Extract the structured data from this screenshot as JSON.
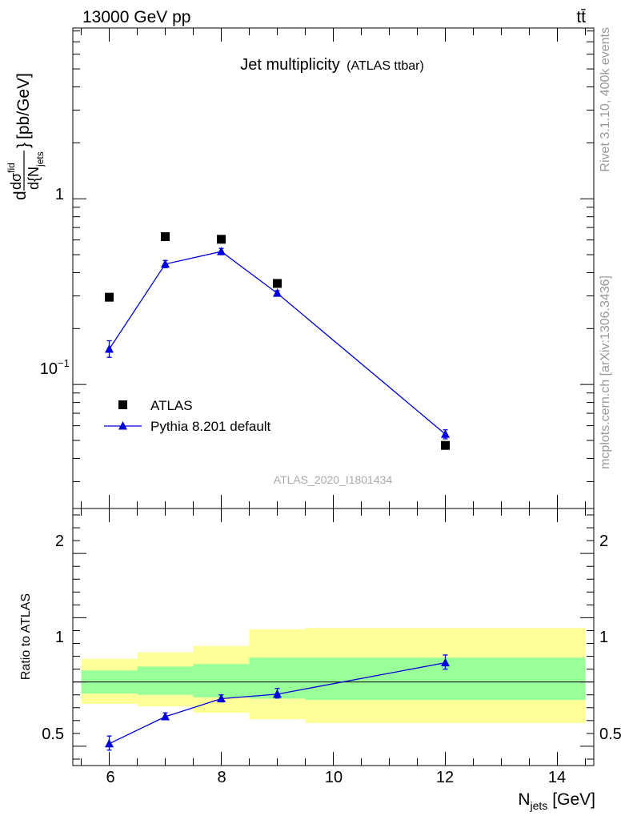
{
  "header": {
    "energy_label": "13000 GeV pp",
    "process_label": "tt̄"
  },
  "side_labels": {
    "rivet": "Rivet 3.1.10,  400k events",
    "mcplots": "mcplots.cern.ch [arXiv:1306.3436]"
  },
  "chart_data": [
    {
      "type": "scatter",
      "title": "Jet multiplicity",
      "subtitle": "(ATLAS ttbar)",
      "watermark": "ATLAS_2020_I1801434",
      "ylabel": {
        "numerator": "dσ",
        "numerator_sup": "fid",
        "denominator": "d{N",
        "denominator_sub": "jets",
        "denominator_close": "}",
        "unit": "[pb/GeV]"
      },
      "yscale": "log",
      "xlim": [
        5.35,
        14.65
      ],
      "ylim": [
        0.0215,
        8.3
      ],
      "ytick_labels": [
        {
          "value": 1,
          "label": "1"
        },
        {
          "value": 0.1,
          "label": "10",
          "sup": "−1"
        }
      ],
      "grid": false,
      "legend_position": "bottom-left",
      "series": [
        {
          "name": "ATLAS",
          "marker": "square",
          "color": "#000000",
          "x": [
            6,
            7,
            8,
            9,
            12
          ],
          "y": [
            0.295,
            0.625,
            0.605,
            0.35,
            0.047
          ]
        },
        {
          "name": "Pythia 8.201 default",
          "marker": "triangle",
          "line": true,
          "color": "#0000dd",
          "x": [
            6,
            7,
            8,
            9,
            12
          ],
          "y": [
            0.155,
            0.445,
            0.52,
            0.31,
            0.054
          ],
          "err_low": [
            0.14,
            0.425,
            0.5,
            0.3,
            0.051
          ],
          "err_high": [
            0.172,
            0.465,
            0.54,
            0.32,
            0.057
          ]
        }
      ]
    },
    {
      "type": "line",
      "ylabel": "Ratio to ATLAS",
      "xlabel": "N",
      "xlabel_sub": "jets",
      "xlabel_unit": "[GeV]",
      "xlim": [
        5.35,
        14.65
      ],
      "ylim": [
        0.35,
        2.35
      ],
      "xtick_labels": [
        "6",
        "8",
        "10",
        "12",
        "14"
      ],
      "ytick_labels": [
        "0.5",
        "1",
        "2"
      ],
      "reference_line": 1,
      "bands": [
        {
          "x0": 5.5,
          "x1": 6.5,
          "inner": [
            0.91,
            1.09
          ],
          "outer": [
            0.83,
            1.18
          ]
        },
        {
          "x0": 6.5,
          "x1": 7.5,
          "inner": [
            0.9,
            1.12
          ],
          "outer": [
            0.81,
            1.23
          ]
        },
        {
          "x0": 7.5,
          "x1": 8.5,
          "inner": [
            0.88,
            1.14
          ],
          "outer": [
            0.76,
            1.28
          ]
        },
        {
          "x0": 8.5,
          "x1": 9.5,
          "inner": [
            0.87,
            1.19
          ],
          "outer": [
            0.71,
            1.41
          ]
        },
        {
          "x0": 9.5,
          "x1": 14.5,
          "inner": [
            0.86,
            1.19
          ],
          "outer": [
            0.68,
            1.42
          ]
        }
      ],
      "series": [
        {
          "name": "Pythia 8.201 default",
          "color": "#0000dd",
          "x": [
            6,
            7,
            8,
            9,
            12
          ],
          "y": [
            0.52,
            0.73,
            0.87,
            0.905,
            1.15
          ],
          "err_low": [
            0.47,
            0.71,
            0.845,
            0.875,
            1.1
          ],
          "err_high": [
            0.58,
            0.76,
            0.9,
            0.95,
            1.21
          ]
        }
      ]
    }
  ]
}
